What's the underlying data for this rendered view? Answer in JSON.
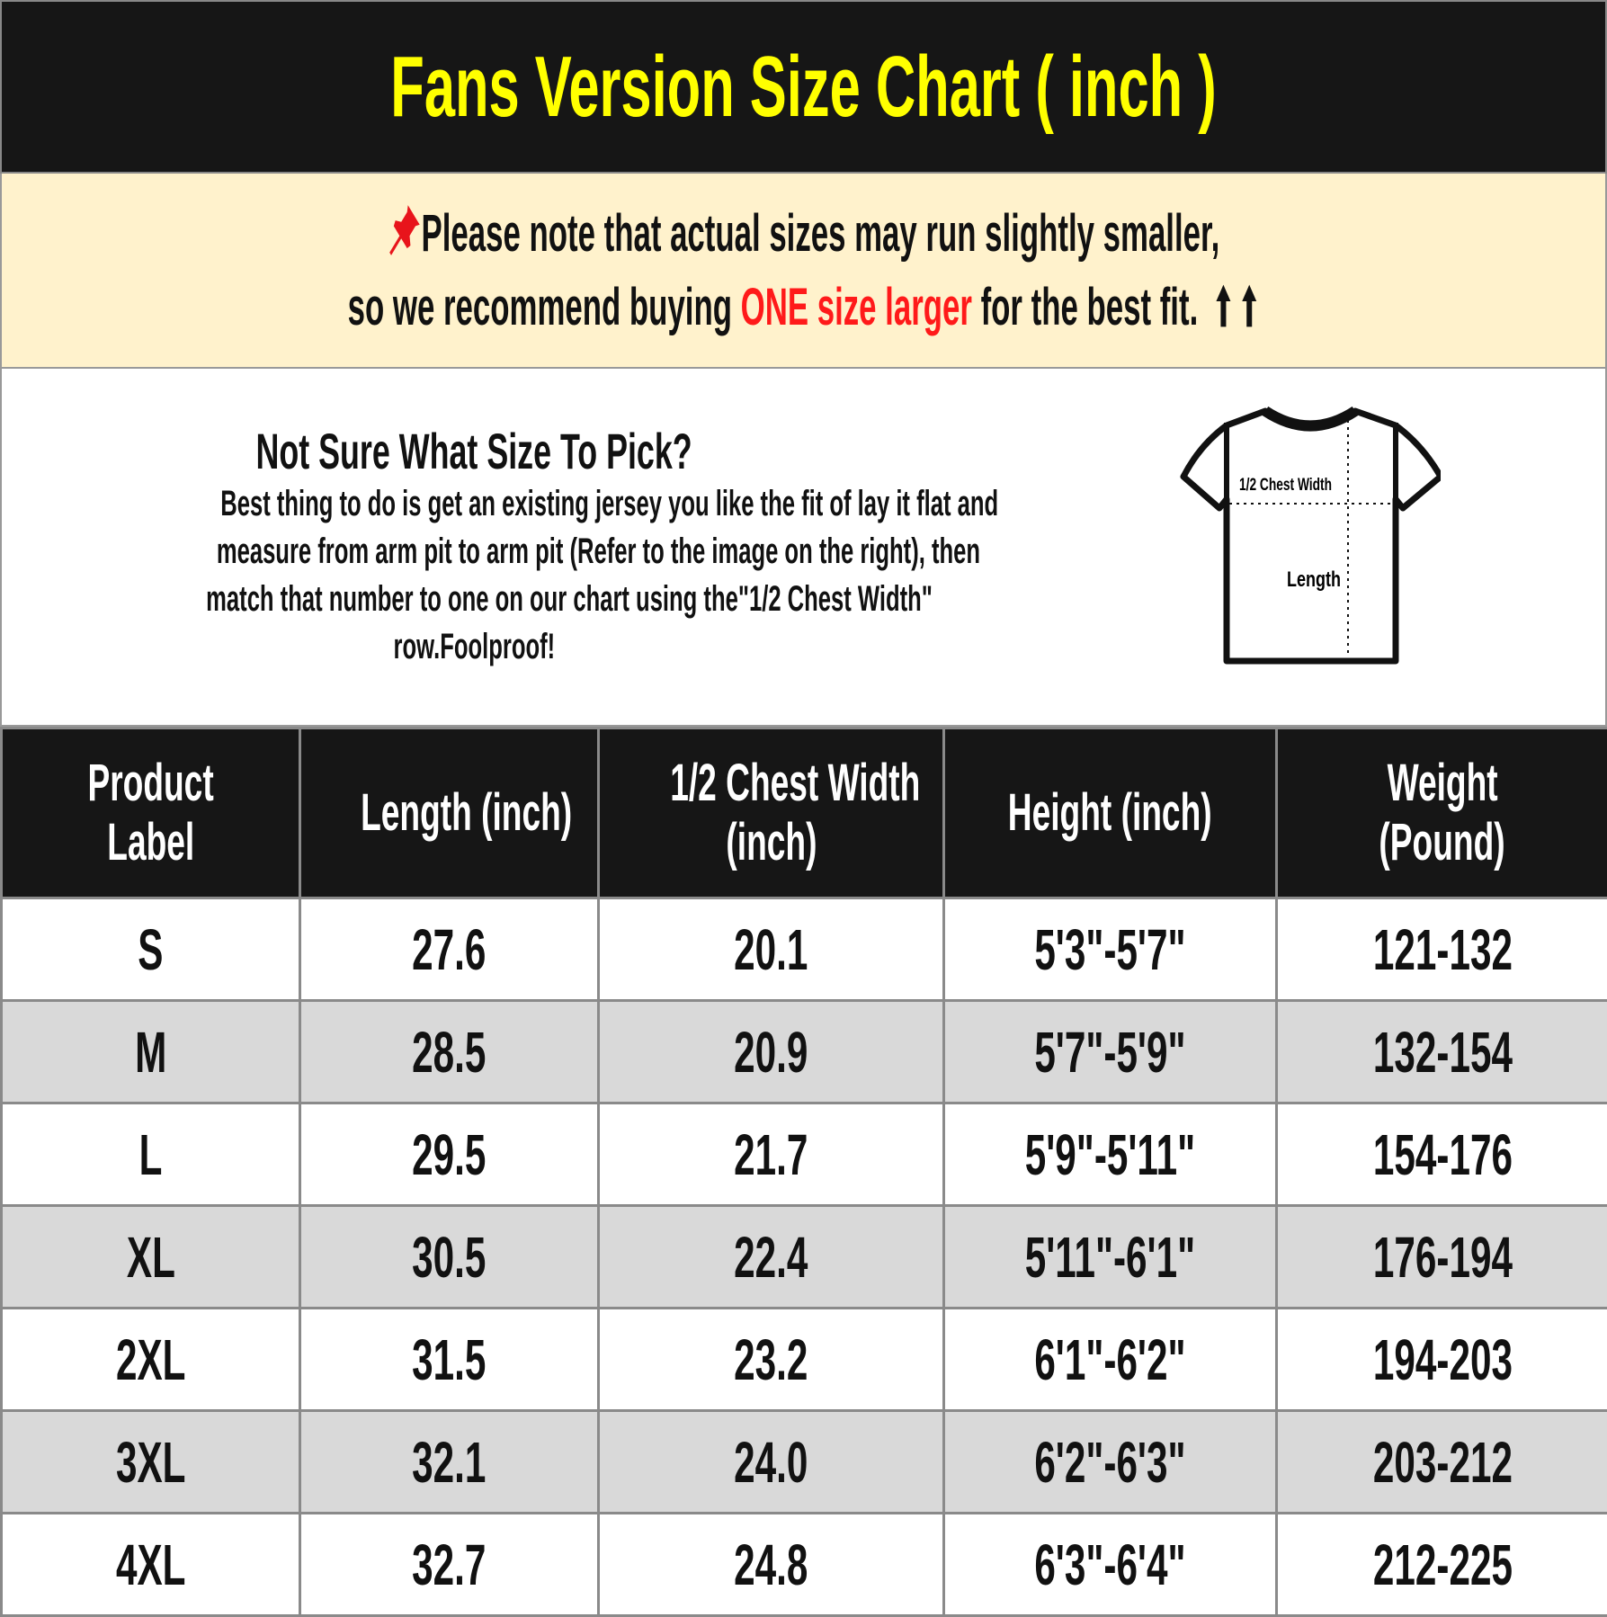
{
  "title": "Fans Version Size Chart ( inch )",
  "note": {
    "pin_icon": "pushpin-icon",
    "line1": "Please note that actual sizes may run slightly smaller,",
    "line2_before": "so we recommend buying ",
    "line2_highlight": "ONE size larger",
    "line2_after": " for the best fit.",
    "arrow_icon": "up-arrow-icon",
    "highlight_color": "#ff1a1a"
  },
  "info": {
    "heading": "Not Sure What Size To Pick?",
    "lines": [
      "Best thing to do is get an existing jersey you like the fit of lay it flat and",
      "measure from arm pit to arm pit (Refer to the image on the right), then",
      "match that number to one on our chart using the\"1/2 Chest Width\"",
      "row.Foolproof!"
    ],
    "diagram": {
      "chest_label": "1/2 Chest Width",
      "length_label": "Length"
    }
  },
  "table": {
    "headers": [
      [
        "Product",
        "Label"
      ],
      [
        "Length (inch)"
      ],
      [
        "1/2 Chest Width",
        "(inch)"
      ],
      [
        "Height (inch)"
      ],
      [
        "Weight",
        "(Pound)"
      ]
    ],
    "rows": [
      [
        "S",
        "27.6",
        "20.1",
        "5'3\"-5'7\"",
        "121-132"
      ],
      [
        "M",
        "28.5",
        "20.9",
        "5'7\"-5'9\"",
        "132-154"
      ],
      [
        "L",
        "29.5",
        "21.7",
        "5'9\"-5'11\"",
        "154-176"
      ],
      [
        "XL",
        "30.5",
        "22.4",
        "5'11\"-6'1\"",
        "176-194"
      ],
      [
        "2XL",
        "31.5",
        "23.2",
        "6'1\"-6'2\"",
        "194-203"
      ],
      [
        "3XL",
        "32.1",
        "24.0",
        "6'2\"-6'3\"",
        "203-212"
      ],
      [
        "4XL",
        "32.7",
        "24.8",
        "6'3\"-6'4\"",
        "212-225"
      ]
    ]
  },
  "colors": {
    "title_bg": "#161616",
    "title_text": "#ffff00",
    "note_bg": "#fff2cc",
    "row_alt": "#d9d9d9"
  }
}
